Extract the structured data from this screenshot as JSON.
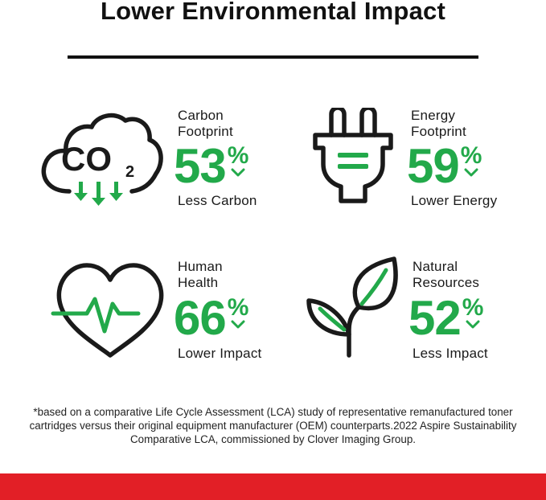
{
  "header": {
    "title": "Lower Environmental Impact"
  },
  "metrics": [
    {
      "icon": "co2-cloud-icon",
      "icon_text": "CO",
      "icon_sub": "2",
      "label_line1": "Carbon",
      "label_line2": "Footprint",
      "value": "53",
      "unit": "%",
      "description": "Less Carbon"
    },
    {
      "icon": "electric-plug-icon",
      "label_line1": "Energy",
      "label_line2": "Footprint",
      "value": "59",
      "unit": "%",
      "description": "Lower Energy"
    },
    {
      "icon": "heart-pulse-icon",
      "label_line1": "Human",
      "label_line2": "Health",
      "value": "66",
      "unit": "%",
      "description": "Lower Impact"
    },
    {
      "icon": "leaf-sprout-icon",
      "label_line1": "Natural",
      "label_line2": "Resources",
      "value": "52",
      "unit": "%",
      "description": "Less Impact"
    }
  ],
  "footnote": "*based on a comparative Life Cycle Assessment (LCA) study of representative remanufactured toner cartridges versus their original equipment manufacturer (OEM) counterparts.2022 Aspire Sustainability Comparative LCA, commissioned by Clover Imaging Group.",
  "colors": {
    "accent_green": "#22a94a",
    "bottom_bar_red": "#e21f26",
    "text_dark": "#1a1a1a"
  }
}
